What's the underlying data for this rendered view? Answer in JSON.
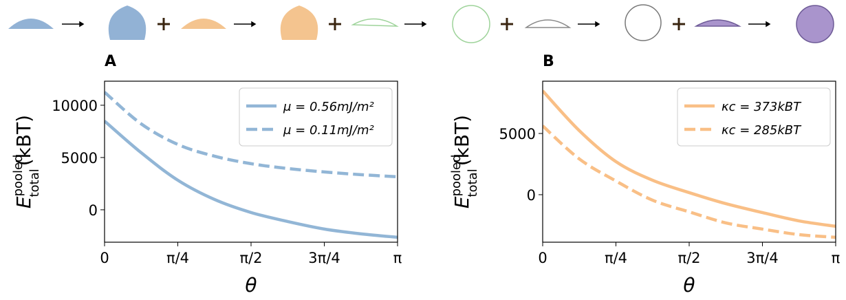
{
  "chart_data": [
    {
      "type": "line",
      "panel_label": "A",
      "x_label": "θ",
      "y_label": {
        "symbol": "E",
        "superscript": "pooled",
        "subscript": "total",
        "unit": "(kBT)"
      },
      "xlim": [
        0,
        3.1416
      ],
      "xticks": [
        0,
        {
          "value": 0.7854,
          "label": "π/4"
        },
        {
          "value": 1.5708,
          "label": "π/2"
        },
        {
          "value": 2.3562,
          "label": "3π/4"
        },
        {
          "value": 3.1416,
          "label": "π"
        }
      ],
      "ylim": [
        -3100,
        12300
      ],
      "yticks": [
        0,
        5000,
        10000
      ],
      "legend": "upper right",
      "x": [
        0,
        0.3927,
        0.7854,
        1.1781,
        1.5708,
        1.9635,
        2.3562,
        2.7489,
        3.1416
      ],
      "series": [
        {
          "name": "μ = 0.56mJ/m²",
          "color": "#92b6d6",
          "style": "solid",
          "values": [
            8490,
            5460,
            2830,
            990,
            -260,
            -1120,
            -1840,
            -2300,
            -2630
          ]
        },
        {
          "name": "μ = 0.11mJ/m²",
          "color": "#92b6d6",
          "style": "dashed",
          "values": [
            11250,
            8220,
            6250,
            5130,
            4410,
            3950,
            3620,
            3360,
            3160
          ]
        }
      ]
    },
    {
      "type": "line",
      "panel_label": "B",
      "x_label": "θ",
      "y_label": {
        "symbol": "E",
        "superscript": "pooled",
        "subscript": "total",
        "unit": "(kBT)"
      },
      "xlim": [
        0,
        3.1416
      ],
      "xticks": [
        0,
        {
          "value": 0.7854,
          "label": "π/4"
        },
        {
          "value": 1.5708,
          "label": "π/2"
        },
        {
          "value": 2.3562,
          "label": "3π/4"
        },
        {
          "value": 3.1416,
          "label": "π"
        }
      ],
      "ylim": [
        -3880,
        9270
      ],
      "yticks": [
        0,
        5000
      ],
      "legend": "upper right",
      "x": [
        0,
        0.3927,
        0.7854,
        1.1781,
        1.5708,
        1.9635,
        2.3562,
        2.7489,
        3.1416
      ],
      "series": [
        {
          "name": "κc = 373kBT",
          "color": "#f9bf86",
          "style": "solid",
          "values": [
            8480,
            5230,
            2700,
            1180,
            170,
            -730,
            -1460,
            -2140,
            -2580
          ]
        },
        {
          "name": "κc = 285kBT",
          "color": "#f9bf86",
          "style": "dashed",
          "values": [
            5620,
            2920,
            1120,
            -450,
            -1400,
            -2300,
            -2810,
            -3260,
            -3480
          ]
        }
      ]
    }
  ]
}
